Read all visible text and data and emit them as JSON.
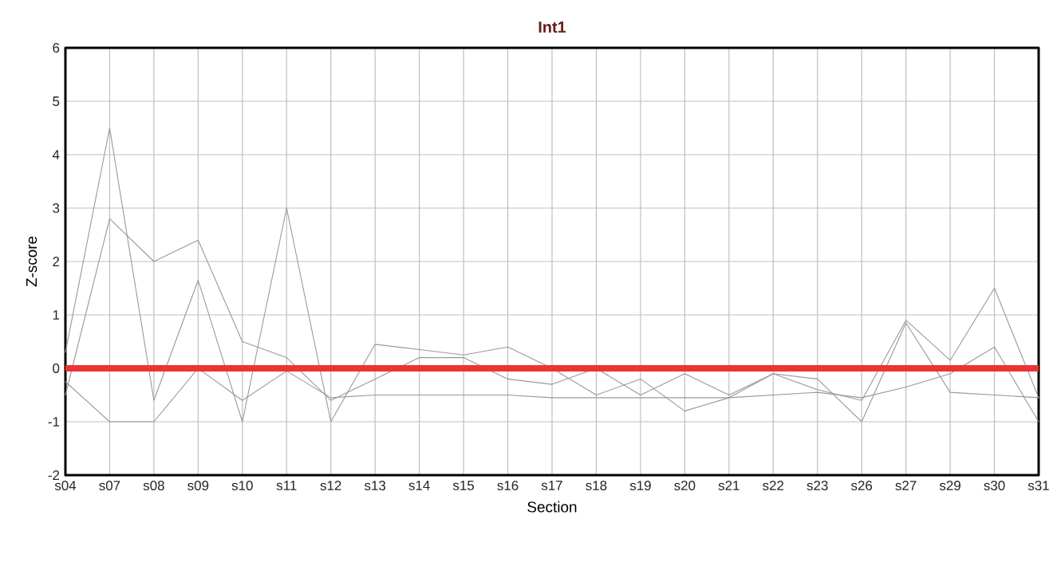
{
  "chart_data": {
    "type": "line",
    "title": "Int1",
    "xlabel": "Section",
    "ylabel": "Z-score",
    "categories": [
      "s04",
      "s07",
      "s08",
      "s09",
      "s10",
      "s11",
      "s12",
      "s13",
      "s14",
      "s15",
      "s16",
      "s17",
      "s18",
      "s19",
      "s20",
      "s21",
      "s22",
      "s23",
      "s26",
      "s27",
      "s29",
      "s30",
      "s31"
    ],
    "series": [
      {
        "color": "#999999",
        "values": [
          0.3,
          4.5,
          -0.6,
          1.65,
          -1.0,
          3.0,
          -1.0,
          0.45,
          0.35,
          0.25,
          0.4,
          0.0,
          -0.5,
          -0.2,
          -0.8,
          -0.55,
          -0.1,
          -0.2,
          -1.0,
          0.85,
          -0.45,
          -0.5,
          -0.55
        ]
      },
      {
        "color": "#999999",
        "values": [
          -0.5,
          2.8,
          2.0,
          2.4,
          0.5,
          0.2,
          -0.6,
          -0.2,
          0.2,
          0.2,
          -0.2,
          -0.3,
          0.0,
          -0.5,
          -0.1,
          -0.5,
          -0.1,
          -0.4,
          -0.6,
          0.9,
          0.15,
          1.5,
          -0.55
        ]
      },
      {
        "color": "#999999",
        "values": [
          -0.25,
          -1.0,
          -1.0,
          0.0,
          -0.6,
          -0.05,
          -0.55,
          -0.5,
          -0.5,
          -0.5,
          -0.5,
          -0.55,
          -0.55,
          -0.55,
          -0.55,
          -0.55,
          -0.5,
          -0.45,
          -0.55,
          -0.35,
          -0.1,
          0.4,
          -1.0
        ]
      }
    ],
    "ylim": [
      -2,
      6
    ],
    "yticks": [
      -2,
      -1,
      0,
      1,
      2,
      3,
      4,
      5,
      6
    ],
    "grid": true,
    "marker": "none",
    "line_style": "solid",
    "ref_lines": [
      {
        "axis": "y",
        "value": 0,
        "color": "#ee3333"
      }
    ]
  }
}
